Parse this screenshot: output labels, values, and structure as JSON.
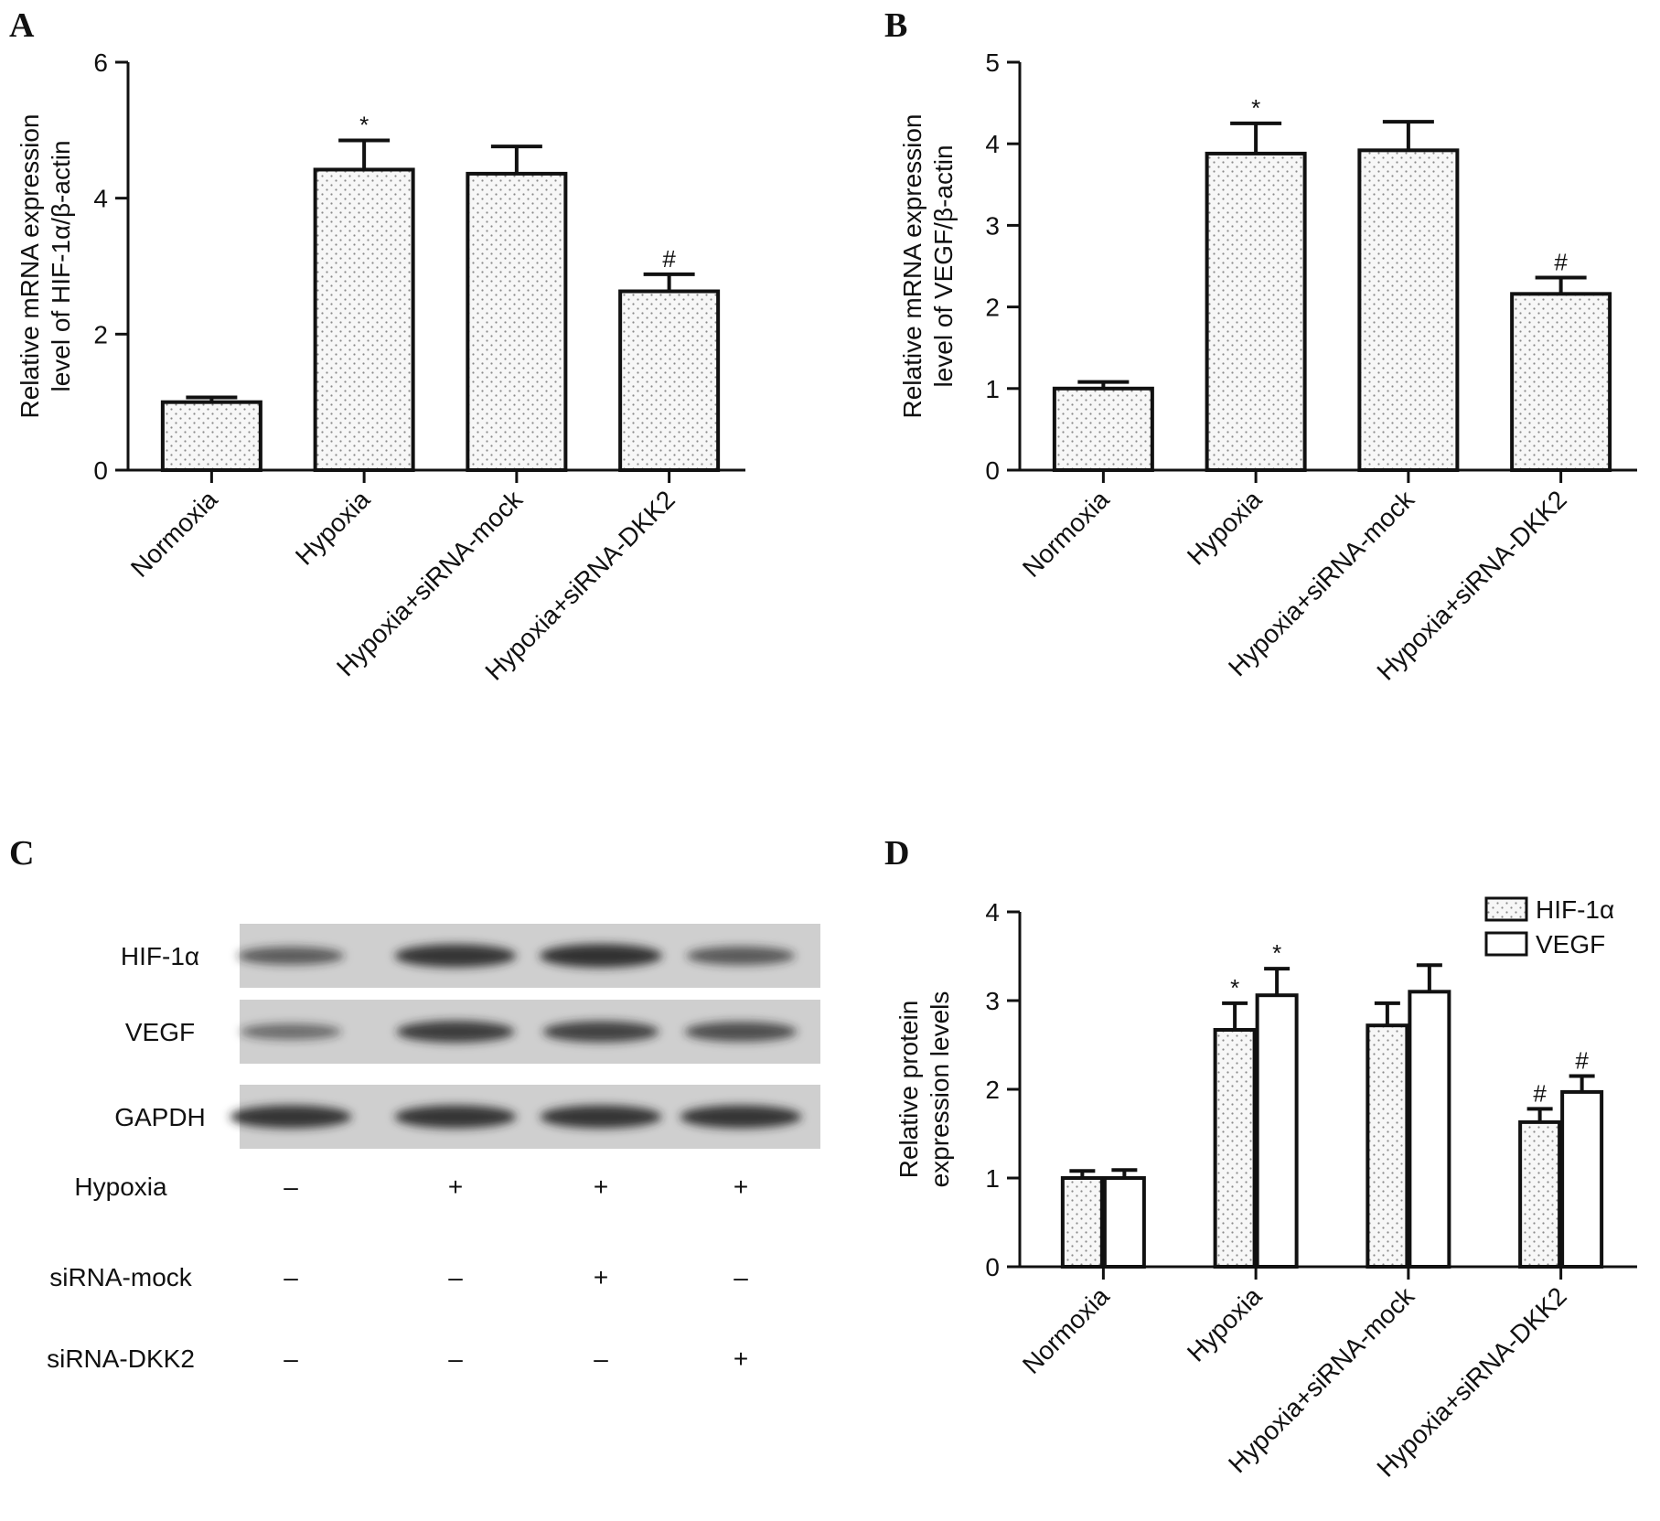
{
  "chart_data": [
    {
      "panel": "A",
      "type": "bar",
      "categories": [
        "Normoxia",
        "Hypoxia",
        "Hypoxia+siRNA-mock",
        "Hypoxia+siRNA-DKK2"
      ],
      "values": [
        1.0,
        4.42,
        4.36,
        2.63
      ],
      "errors": [
        0.07,
        0.43,
        0.4,
        0.25
      ],
      "annotations": [
        "",
        "*",
        "",
        "#"
      ],
      "ylabel": [
        "Relative mRNA expression",
        "level of HIF-1α/β-actin"
      ],
      "ylim": [
        0,
        6
      ],
      "yticks": [
        0,
        2,
        4,
        6
      ]
    },
    {
      "panel": "B",
      "type": "bar",
      "categories": [
        "Normoxia",
        "Hypoxia",
        "Hypoxia+siRNA-mock",
        "Hypoxia+siRNA-DKK2"
      ],
      "values": [
        1.0,
        3.88,
        3.92,
        2.16
      ],
      "errors": [
        0.08,
        0.37,
        0.35,
        0.2
      ],
      "annotations": [
        "",
        "*",
        "",
        "#"
      ],
      "ylabel": [
        "Relative mRNA expression",
        "level of VEGF/β-actin"
      ],
      "ylim": [
        0,
        5
      ],
      "yticks": [
        0,
        1,
        2,
        3,
        4,
        5
      ]
    },
    {
      "panel": "D",
      "type": "bar",
      "categories": [
        "Normoxia",
        "Hypoxia",
        "Hypoxia+siRNA-mock",
        "Hypoxia+siRNA-DKK2"
      ],
      "series": [
        {
          "name": "HIF-1α",
          "values": [
            1.0,
            2.67,
            2.72,
            1.63
          ],
          "errors": [
            0.08,
            0.3,
            0.25,
            0.15
          ],
          "annotations": [
            "",
            "*",
            "",
            "#"
          ],
          "pattern": "dotted"
        },
        {
          "name": "VEGF",
          "values": [
            1.0,
            3.06,
            3.1,
            1.97
          ],
          "errors": [
            0.09,
            0.3,
            0.3,
            0.18
          ],
          "annotations": [
            "",
            "*",
            "",
            "#"
          ],
          "pattern": "plain"
        }
      ],
      "ylabel": [
        "Relative protein",
        "expression levels"
      ],
      "ylim": [
        0,
        4
      ],
      "yticks": [
        0,
        1,
        2,
        3,
        4
      ],
      "legend": "top-right"
    }
  ],
  "blot": {
    "panel": "C",
    "rows": [
      {
        "label": "HIF-1α",
        "intensities": [
          0.55,
          0.95,
          0.98,
          0.6
        ]
      },
      {
        "label": "VEGF",
        "intensities": [
          0.4,
          0.85,
          0.8,
          0.7
        ]
      },
      {
        "label": "GAPDH",
        "intensities": [
          0.95,
          0.95,
          0.95,
          0.95
        ]
      }
    ],
    "conditions": [
      {
        "label": "Hypoxia",
        "marks": [
          "–",
          "+",
          "+",
          "+"
        ]
      },
      {
        "label": "siRNA-mock",
        "marks": [
          "–",
          "–",
          "+",
          "–"
        ]
      },
      {
        "label": "siRNA-DKK2",
        "marks": [
          "–",
          "–",
          "–",
          "+"
        ]
      }
    ]
  },
  "panel_letters": {
    "a": "A",
    "b": "B",
    "c": "C",
    "d": "D"
  },
  "colors": {
    "ink": "#111111",
    "bar_fill": "#f4f4f4",
    "dot": "#8a8a8a",
    "blot_bg": "#cfcfcf",
    "band": "#262626"
  }
}
